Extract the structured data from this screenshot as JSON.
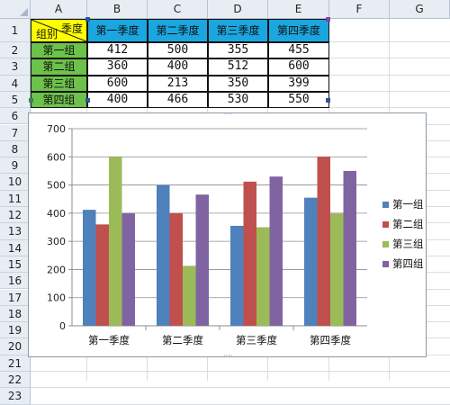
{
  "columns": [
    "A",
    "B",
    "C",
    "D",
    "E",
    "F",
    "G"
  ],
  "rows": [
    "1",
    "2",
    "3",
    "4",
    "5",
    "6",
    "7",
    "8",
    "9",
    "10",
    "11",
    "12",
    "13",
    "14",
    "15",
    "16",
    "17",
    "18",
    "19",
    "20",
    "21",
    "22",
    "23"
  ],
  "table": {
    "corner_top": "季度",
    "corner_bottom": "组别",
    "headers": [
      "第一季度",
      "第二季度",
      "第三季度",
      "第四季度"
    ],
    "rows": [
      {
        "label": "第一组",
        "values": [
          "412",
          "500",
          "355",
          "455"
        ]
      },
      {
        "label": "第二组",
        "values": [
          "360",
          "400",
          "512",
          "600"
        ]
      },
      {
        "label": "第三组",
        "values": [
          "600",
          "213",
          "350",
          "399"
        ]
      },
      {
        "label": "第四组",
        "values": [
          "400",
          "466",
          "530",
          "550"
        ]
      }
    ]
  },
  "colors": {
    "header_fill": "#1aa6df",
    "group_fill": "#6cc24a",
    "corner_fill": "#ffff00"
  },
  "chart_data": {
    "type": "bar",
    "categories": [
      "第一季度",
      "第二季度",
      "第三季度",
      "第四季度"
    ],
    "series": [
      {
        "name": "第一组",
        "color": "#4f81bd",
        "values": [
          412,
          500,
          355,
          455
        ]
      },
      {
        "name": "第二组",
        "color": "#c0504d",
        "values": [
          360,
          400,
          512,
          600
        ]
      },
      {
        "name": "第三组",
        "color": "#9bbb59",
        "values": [
          600,
          213,
          350,
          399
        ]
      },
      {
        "name": "第四组",
        "color": "#8064a2",
        "values": [
          400,
          466,
          530,
          550
        ]
      }
    ],
    "y_ticks": [
      "0",
      "100",
      "200",
      "300",
      "400",
      "500",
      "600",
      "700"
    ],
    "ylim": [
      0,
      700
    ],
    "grid": true,
    "legend_position": "right"
  }
}
